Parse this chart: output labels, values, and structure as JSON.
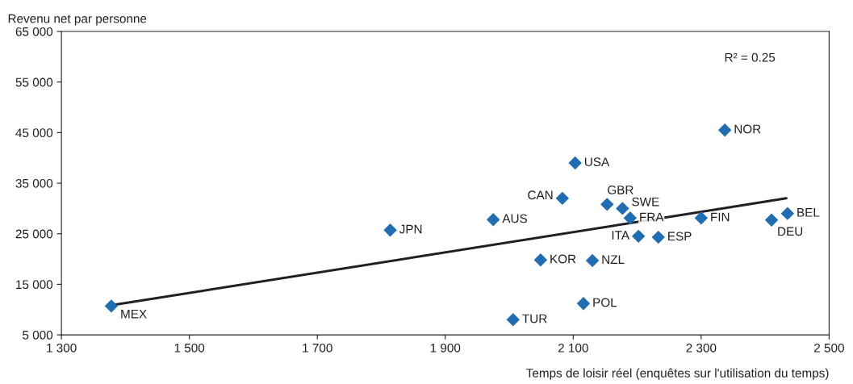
{
  "chart_data": {
    "type": "scatter",
    "ylabel": "Revenu net par personne",
    "xlabel": "Temps de loisir réel (enquêtes sur l'utilisation du temps)",
    "annotations": [
      "R² = 0.25"
    ],
    "xlim": [
      1300,
      2500
    ],
    "ylim": [
      5000,
      65000
    ],
    "xticks": [
      {
        "value": 1300,
        "label": "1 300"
      },
      {
        "value": 1500,
        "label": "1 500"
      },
      {
        "value": 1700,
        "label": "1 700"
      },
      {
        "value": 1900,
        "label": "1 900"
      },
      {
        "value": 2100,
        "label": "2 100"
      },
      {
        "value": 2300,
        "label": "2 300"
      },
      {
        "value": 2500,
        "label": "2 500"
      }
    ],
    "yticks": [
      {
        "value": 5000,
        "label": "5 000"
      },
      {
        "value": 15000,
        "label": "15 000"
      },
      {
        "value": 25000,
        "label": "25 000"
      },
      {
        "value": 35000,
        "label": "35 000"
      },
      {
        "value": 45000,
        "label": "45 000"
      },
      {
        "value": 55000,
        "label": "55 000"
      },
      {
        "value": 65000,
        "label": "65 000"
      }
    ],
    "grid": false,
    "marker": "diamond",
    "series": [
      {
        "color": "#1f6db4",
        "x": [
          1378,
          1814,
          1975,
          2049,
          2006,
          2083,
          2103,
          2116,
          2130,
          2153,
          2177,
          2189,
          2202,
          2233,
          2300,
          2337,
          2410,
          2435
        ],
        "values": [
          10700,
          25700,
          27800,
          19800,
          8000,
          32000,
          39000,
          11200,
          19700,
          30800,
          30000,
          28100,
          24500,
          24300,
          28100,
          45500,
          27700,
          29000
        ],
        "value_labels": [
          "MEX",
          "JPN",
          "AUS",
          "KOR",
          "TUR",
          "CAN",
          "USA",
          "POL",
          "NZL",
          "GBR",
          "SWE",
          "FRA",
          "ITA",
          "ESP",
          "FIN",
          "NOR",
          "DEU",
          "BEL"
        ]
      },
      {
        "type": "line",
        "color": "#231f20",
        "x": [
          1381,
          2433
        ],
        "values": [
          10900,
          32000
        ],
        "marker": "none"
      }
    ]
  }
}
